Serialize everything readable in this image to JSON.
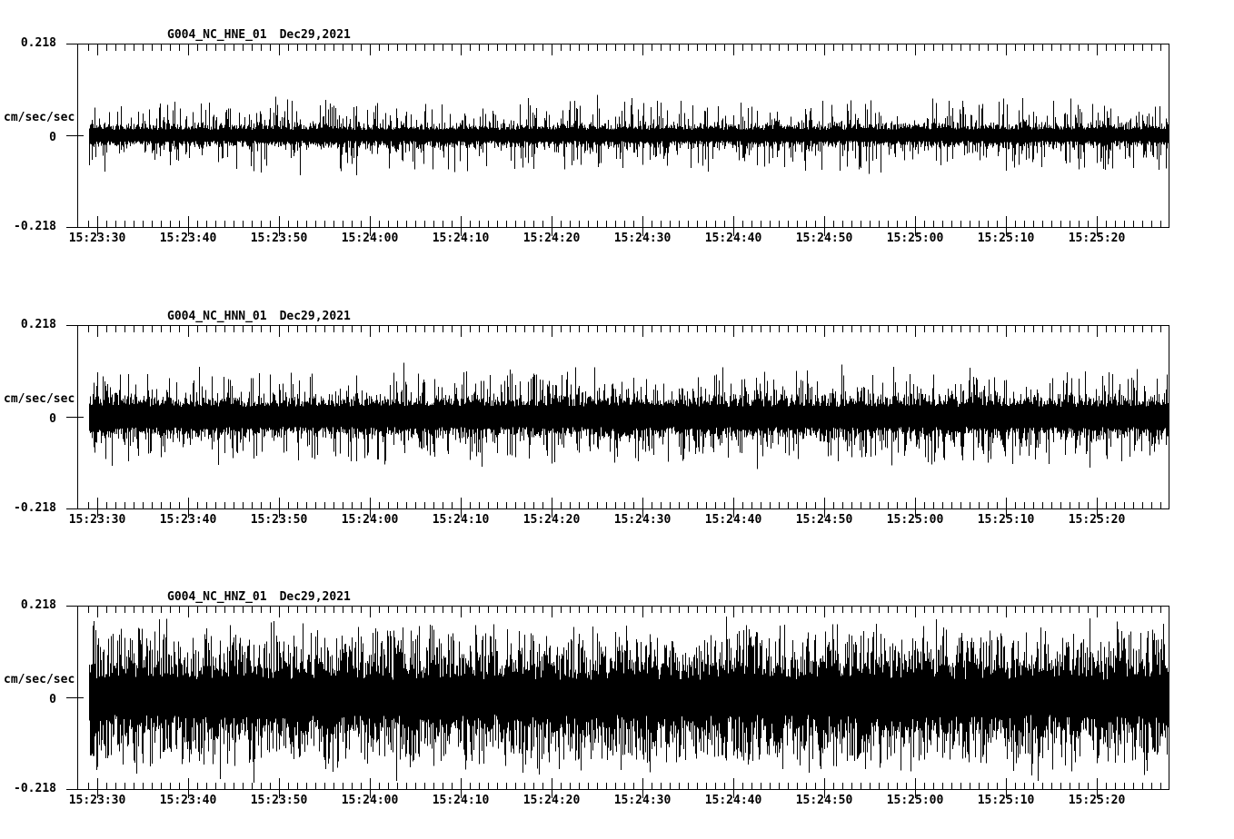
{
  "figure": {
    "background_color": "#ffffff",
    "trace_color": "#000000",
    "axis_color": "#000000"
  },
  "y_axis": {
    "units_label": "cm/sec/sec",
    "max_label": "0.218",
    "zero_label": "0",
    "min_label": "-0.218"
  },
  "x_axis": {
    "tick_labels": [
      "15:23:30",
      "15:23:40",
      "15:23:50",
      "15:24:00",
      "15:24:10",
      "15:24:20",
      "15:24:30",
      "15:24:40",
      "15:24:50",
      "15:25:00",
      "15:25:10",
      "15:25:20"
    ],
    "major_interval_seconds": 10,
    "minor_interval_seconds": 1
  },
  "chart_data": [
    {
      "type": "line",
      "subtype": "seismogram",
      "title": "G004_NC_HNE_01",
      "date_label": "Dec29,2021",
      "ylabel": "cm/sec/sec",
      "ylim": [
        -0.218,
        0.218
      ],
      "ytick_values": [
        0.218,
        0,
        -0.218
      ],
      "xlim_time": [
        "15:23:28",
        "15:25:27"
      ],
      "mean": 0.0,
      "noise_band_halfwidth": 0.026,
      "noise_peak": 0.095,
      "spike_sharpness": 6,
      "seed": 101
    },
    {
      "type": "line",
      "subtype": "seismogram",
      "title": "G004_NC_HNN_01",
      "date_label": "Dec29,2021",
      "ylabel": "cm/sec/sec",
      "ylim": [
        -0.218,
        0.218
      ],
      "ytick_values": [
        0.218,
        0,
        -0.218
      ],
      "xlim_time": [
        "15:23:28",
        "15:25:27"
      ],
      "mean": 0.0,
      "noise_band_halfwidth": 0.048,
      "noise_peak": 0.125,
      "spike_sharpness": 5,
      "seed": 202
    },
    {
      "type": "line",
      "subtype": "seismogram",
      "title": "G004_NC_HNZ_01",
      "date_label": "Dec29,2021",
      "ylabel": "cm/sec/sec",
      "ylim": [
        -0.218,
        0.218
      ],
      "ytick_values": [
        0.218,
        0,
        -0.218
      ],
      "xlim_time": [
        "15:23:28",
        "15:25:27"
      ],
      "mean": 0.0,
      "noise_band_halfwidth": 0.082,
      "noise_peak": 0.185,
      "spike_sharpness": 2,
      "seed": 303
    }
  ]
}
